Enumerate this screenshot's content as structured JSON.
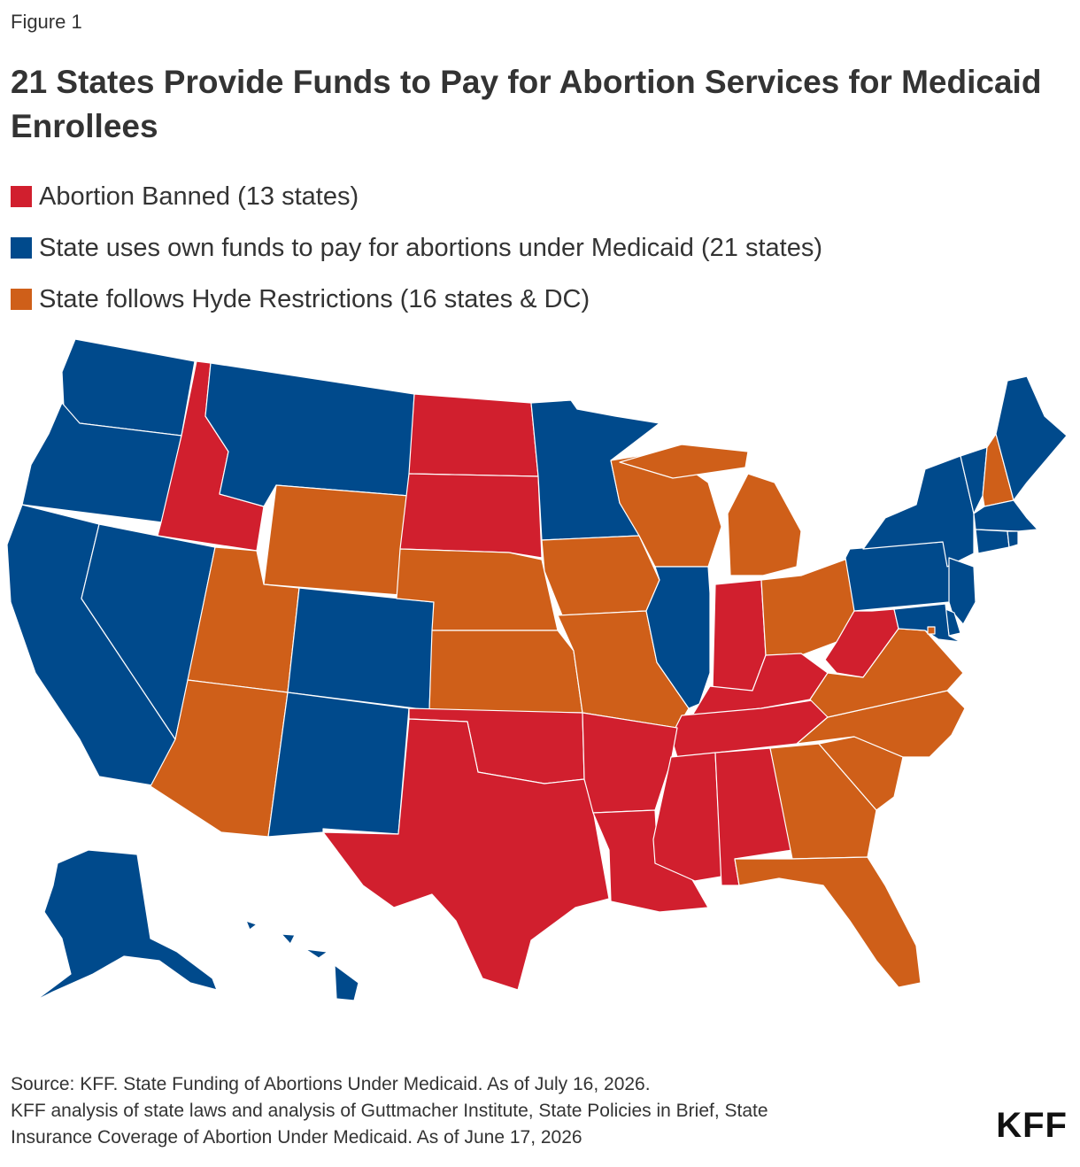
{
  "figure_label": "Figure 1",
  "title": "21 States Provide Funds to Pay for Abortion Services for Medicaid Enrollees",
  "legend": [
    {
      "key": "banned",
      "label": "Abortion Banned (13 states)",
      "color": "#d11f2e"
    },
    {
      "key": "own_funds",
      "label": "State uses own funds to pay for abortions under Medicaid (21 states)",
      "color": "#004a8c"
    },
    {
      "key": "hyde",
      "label": "State follows Hyde Restrictions (16 states & DC)",
      "color": "#cf5f19"
    }
  ],
  "map_data": {
    "type": "choropleth",
    "categories": {
      "banned": [
        "ID",
        "ND",
        "SD",
        "OK",
        "TX",
        "AR",
        "LA",
        "MS",
        "AL",
        "TN",
        "KY",
        "IN",
        "WV"
      ],
      "own_funds": [
        "WA",
        "OR",
        "CA",
        "NV",
        "MT",
        "CO",
        "NM",
        "MN",
        "IL",
        "NY",
        "VT",
        "ME",
        "MA",
        "RI",
        "CT",
        "NJ",
        "PA",
        "MD",
        "DE",
        "AK",
        "HI"
      ],
      "hyde": [
        "WY",
        "UT",
        "AZ",
        "NE",
        "KS",
        "IA",
        "MO",
        "WI",
        "MI",
        "OH",
        "VA",
        "NC",
        "SC",
        "GA",
        "FL",
        "NH",
        "DC"
      ]
    }
  },
  "source": {
    "line1": "Source: KFF. State Funding of Abortions Under Medicaid. As of July 16, 2026.",
    "line2": "KFF analysis of state laws and analysis of Guttmacher Institute, State Policies in Brief, State",
    "line3": "Insurance Coverage of Abortion Under Medicaid. As of June 17, 2026"
  },
  "logo": "KFF"
}
